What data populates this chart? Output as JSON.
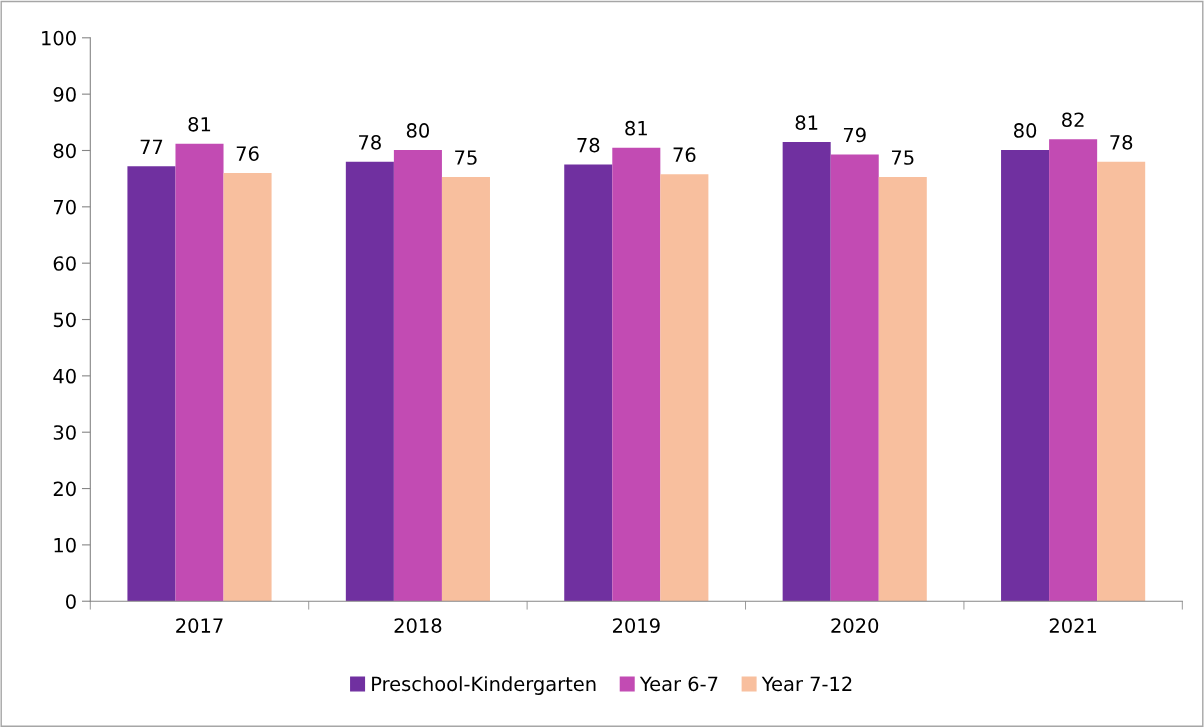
{
  "chart_data": {
    "type": "bar",
    "categories": [
      "2017",
      "2018",
      "2019",
      "2020",
      "2021"
    ],
    "series": [
      {
        "name": "Preschool-Kindergarten",
        "color": "#7030a0",
        "values": [
          77.2,
          78.0,
          77.5,
          81.5,
          80.1
        ],
        "value_labels": [
          "77",
          "78",
          "78",
          "81",
          "80"
        ]
      },
      {
        "name": "Year 6-7",
        "color": "#c24bb3",
        "values": [
          81.2,
          80.1,
          80.5,
          79.3,
          82.0
        ],
        "value_labels": [
          "81",
          "80",
          "81",
          "79",
          "82"
        ]
      },
      {
        "name": "Year 7-12",
        "color": "#f8bf9e",
        "values": [
          76.0,
          75.3,
          75.8,
          75.3,
          78.0
        ],
        "value_labels": [
          "76",
          "75",
          "76",
          "75",
          "78"
        ]
      }
    ],
    "ylim": [
      0,
      100
    ],
    "yticks": [
      0,
      10,
      20,
      30,
      40,
      50,
      60,
      70,
      80,
      90,
      100
    ],
    "grid": false,
    "legend": "bottom"
  }
}
